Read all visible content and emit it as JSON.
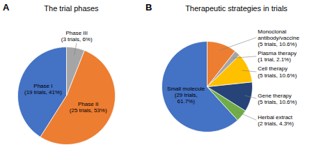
{
  "chart_data": [
    {
      "type": "pie",
      "title": "The trial phases",
      "annotations": [
        "A"
      ],
      "categories": [
        "Phase I\n(19 trials, 41%)",
        "Phase II\n(25 trials, 53%)",
        "Phase III\n(3 trials, 6%)"
      ],
      "values": [
        41,
        53,
        6
      ],
      "colors": [
        "#4472C4",
        "#ED7D31",
        "#A5A5A5"
      ]
    },
    {
      "type": "pie",
      "title": "Therapeutic strategies in trials",
      "annotations": [
        "B"
      ],
      "categories": [
        "Small molecule\n(29 trials,\n61.7%)",
        "Herbal extract\n(2 trials, 4.3%)",
        "Gene therapy\n(5 trials, 10.6%)",
        "Cell therapy\n(5 trials, 10.6%)",
        "Plasma therapy\n(1 trial, 2.1%)",
        "Monoclonal\nantibody/vaccine\n(5 trials, 10.6%)"
      ],
      "values": [
        61.7,
        4.3,
        10.6,
        10.6,
        2.1,
        10.6
      ],
      "colors": [
        "#4472C4",
        "#70AD47",
        "#264478",
        "#FFC000",
        "#A5A5A5",
        "#ED7D31"
      ]
    }
  ]
}
